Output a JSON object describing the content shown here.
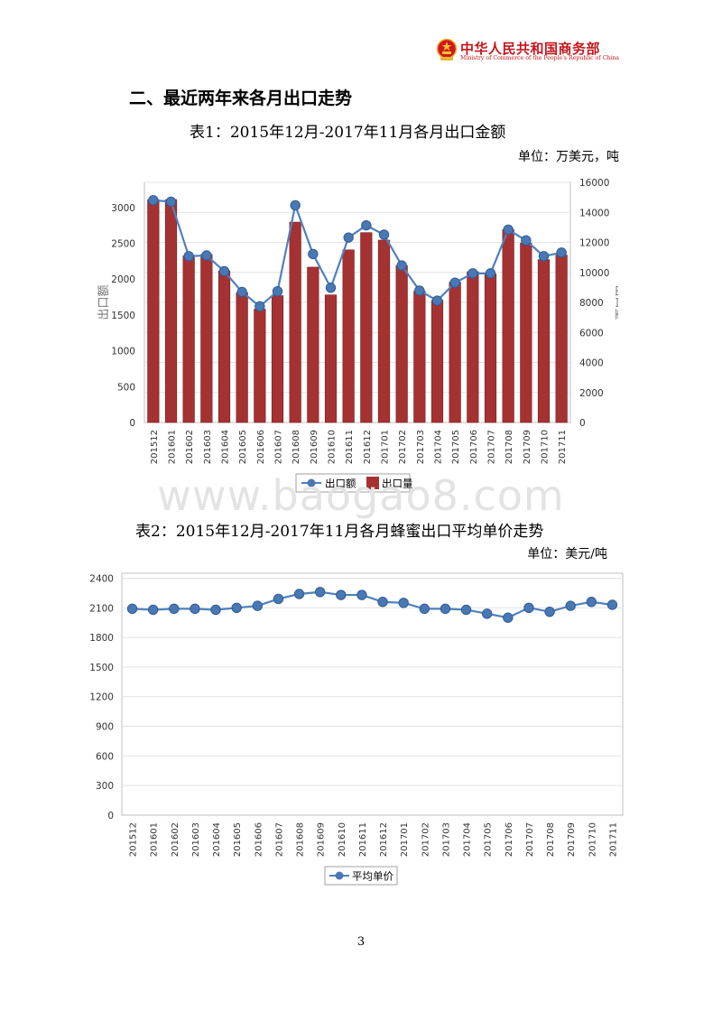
{
  "header": {
    "org_name_cn": "中华人民共和国商务部",
    "org_name_en": "Ministry of Commerce of the People's Republic of China",
    "logo_icon": "national-emblem-icon",
    "brand_color": "#c4161c"
  },
  "section": {
    "heading": "二、最近两年来各月出口走势"
  },
  "table1": {
    "caption": "表1：2015年12月-2017年11月各月出口金额",
    "unit": "单位：万美元，吨"
  },
  "table2": {
    "caption": "表2：2015年12月-2017年11月各月蜂蜜出口平均单价走势",
    "unit": "单位：美元/吨"
  },
  "watermark": "www.baogao8.com",
  "page_number": "3",
  "chart_data": [
    {
      "type": "bar",
      "categories": [
        "201512",
        "201601",
        "201602",
        "201603",
        "201604",
        "201605",
        "201606",
        "201607",
        "201608",
        "201609",
        "201610",
        "201611",
        "201612",
        "201701",
        "201702",
        "201703",
        "201704",
        "201705",
        "201706",
        "201707",
        "201708",
        "201709",
        "201710",
        "201711"
      ],
      "series": [
        {
          "name": "出口额",
          "type": "line",
          "axis": "left",
          "color": "#4f81bd",
          "values": [
            3100,
            3080,
            2320,
            2330,
            2110,
            1820,
            1620,
            1830,
            3030,
            2350,
            1880,
            2580,
            2750,
            2620,
            2190,
            1840,
            1700,
            1950,
            2080,
            2080,
            2690,
            2540,
            2320,
            2370
          ]
        },
        {
          "name": "出口量",
          "type": "bar",
          "axis": "right",
          "color": "#a53232",
          "values": [
            14850,
            14850,
            11100,
            11200,
            10100,
            8650,
            7550,
            8450,
            13350,
            10350,
            8500,
            11500,
            12650,
            12150,
            10450,
            8750,
            8150,
            9350,
            10050,
            9900,
            12850,
            11950,
            10850,
            11150
          ]
        }
      ],
      "y_left": {
        "label": "出口额",
        "ylim": [
          0,
          3350
        ],
        "ticks": [
          0,
          500,
          1000,
          1500,
          2000,
          2500,
          3000
        ]
      },
      "y_right": {
        "label": "出口量",
        "ylim": [
          0,
          16000
        ],
        "ticks": [
          0,
          2000,
          4000,
          6000,
          8000,
          10000,
          12000,
          14000,
          16000
        ]
      },
      "legend_position": "bottom",
      "grid": true
    },
    {
      "type": "line",
      "categories": [
        "201512",
        "201601",
        "201602",
        "201603",
        "201604",
        "201605",
        "201606",
        "201607",
        "201608",
        "201609",
        "201610",
        "201611",
        "201612",
        "201701",
        "201702",
        "201703",
        "201704",
        "201705",
        "201706",
        "201707",
        "201708",
        "201709",
        "201710",
        "201711"
      ],
      "series": [
        {
          "name": "平均单价",
          "color": "#4f81bd",
          "values": [
            2090,
            2080,
            2090,
            2090,
            2080,
            2100,
            2120,
            2190,
            2240,
            2260,
            2230,
            2230,
            2160,
            2150,
            2090,
            2090,
            2080,
            2040,
            2000,
            2100,
            2060,
            2120,
            2160,
            2130
          ]
        }
      ],
      "y": {
        "ylim": [
          0,
          2450
        ],
        "ticks": [
          0,
          300,
          600,
          900,
          1200,
          1500,
          1800,
          2100,
          2400
        ]
      },
      "legend_position": "bottom",
      "grid": true
    }
  ]
}
